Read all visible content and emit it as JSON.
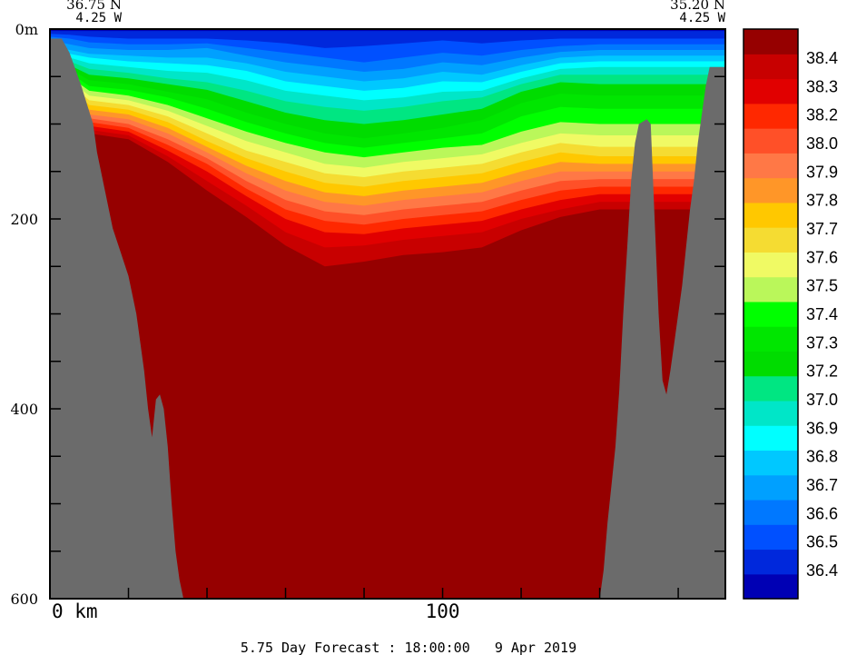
{
  "chart_data": {
    "type": "heatmap",
    "title": "",
    "footer": "5.75 Day Forecast : 18:00:00   9 Apr 2019",
    "endpoints": {
      "left": {
        "lat": "36.75 N",
        "lon": "4.25 W"
      },
      "right": {
        "lat": "35.20 N",
        "lon": "4.25 W"
      }
    },
    "x_axis": {
      "range_km": [
        0,
        172
      ],
      "ticks": [
        0,
        20,
        40,
        60,
        80,
        100,
        120,
        140,
        160
      ],
      "labels": [
        {
          "value": 0,
          "text": "0 km"
        },
        {
          "value": 100,
          "text": "100"
        }
      ]
    },
    "y_axis": {
      "range_m": [
        0,
        600
      ],
      "inverted": true,
      "ticks": [
        0,
        50,
        100,
        150,
        200,
        250,
        300,
        350,
        400,
        450,
        500,
        550,
        600
      ],
      "labels": [
        {
          "value": 0,
          "text": "0m"
        },
        {
          "value": 200,
          "text": "200"
        },
        {
          "value": 400,
          "text": "400"
        },
        {
          "value": 600,
          "text": "600"
        }
      ]
    },
    "colorbar": {
      "colors": [
        "#0000b4",
        "#0028dc",
        "#0050ff",
        "#0078ff",
        "#00a0ff",
        "#00c8ff",
        "#00ffff",
        "#00e6c8",
        "#00e682",
        "#00dc00",
        "#00e600",
        "#00ff00",
        "#baf75a",
        "#f0fa64",
        "#f5dc32",
        "#ffc800",
        "#ff9628",
        "#ff7846",
        "#ff5028",
        "#ff2800",
        "#e10000",
        "#c80000",
        "#960000"
      ],
      "labels": [
        "36.4",
        "36.5",
        "36.6",
        "36.7",
        "36.8",
        "36.9",
        "37.0",
        "37.2",
        "37.3",
        "37.4",
        "37.5",
        "37.6",
        "37.7",
        "37.8",
        "37.9",
        "38.0",
        "38.2",
        "38.3",
        "38.4"
      ]
    },
    "bathymetry_depth_m": [
      [
        0,
        10
      ],
      [
        3,
        10
      ],
      [
        5,
        25
      ],
      [
        8,
        60
      ],
      [
        11,
        100
      ],
      [
        12,
        130
      ],
      [
        14,
        170
      ],
      [
        16,
        210
      ],
      [
        18,
        235
      ],
      [
        20,
        260
      ],
      [
        22,
        300
      ],
      [
        24,
        360
      ],
      [
        25,
        400
      ],
      [
        26,
        430
      ],
      [
        27,
        390
      ],
      [
        28,
        385
      ],
      [
        29,
        400
      ],
      [
        30,
        440
      ],
      [
        31,
        500
      ],
      [
        32,
        550
      ],
      [
        33,
        580
      ],
      [
        34,
        600
      ],
      [
        140,
        600
      ],
      [
        141,
        570
      ],
      [
        142,
        520
      ],
      [
        143,
        480
      ],
      [
        144,
        440
      ],
      [
        145,
        380
      ],
      [
        146,
        300
      ],
      [
        147,
        230
      ],
      [
        148,
        160
      ],
      [
        149,
        120
      ],
      [
        150,
        100
      ],
      [
        152,
        95
      ],
      [
        153,
        100
      ],
      [
        154,
        200
      ],
      [
        155,
        300
      ],
      [
        156,
        370
      ],
      [
        157,
        385
      ],
      [
        158,
        360
      ],
      [
        159,
        330
      ],
      [
        160,
        300
      ],
      [
        161,
        270
      ],
      [
        162,
        230
      ],
      [
        163,
        190
      ],
      [
        164,
        160
      ],
      [
        165,
        120
      ],
      [
        166,
        90
      ],
      [
        167,
        60
      ],
      [
        168,
        40
      ]
    ],
    "isolines_depth_m": {
      "x": [
        0,
        5,
        10,
        20,
        30,
        40,
        50,
        60,
        70,
        80,
        90,
        100,
        110,
        120,
        130,
        140,
        150,
        160,
        170,
        172
      ],
      "levels": [
        [
          2,
          2,
          2,
          2,
          2,
          2,
          2,
          2,
          2,
          2,
          2,
          2,
          2,
          2,
          2,
          2,
          2,
          2,
          2,
          2
        ],
        [
          5,
          6,
          8,
          10,
          10,
          10,
          12,
          15,
          20,
          18,
          15,
          12,
          15,
          12,
          10,
          10,
          10,
          10,
          10,
          10
        ],
        [
          8,
          10,
          14,
          16,
          16,
          15,
          20,
          25,
          30,
          35,
          30,
          25,
          28,
          22,
          18,
          16,
          16,
          16,
          16,
          16
        ],
        [
          12,
          16,
          20,
          22,
          22,
          20,
          28,
          35,
          40,
          45,
          42,
          35,
          38,
          30,
          24,
          22,
          22,
          22,
          22,
          22
        ],
        [
          16,
          22,
          26,
          28,
          30,
          30,
          36,
          45,
          50,
          55,
          52,
          45,
          48,
          38,
          30,
          28,
          28,
          28,
          28,
          28
        ],
        [
          20,
          26,
          30,
          34,
          36,
          38,
          44,
          55,
          60,
          65,
          62,
          55,
          56,
          45,
          36,
          34,
          34,
          34,
          34,
          34
        ],
        [
          24,
          30,
          36,
          40,
          44,
          46,
          54,
          65,
          70,
          75,
          72,
          66,
          65,
          52,
          42,
          40,
          40,
          40,
          40,
          40
        ],
        [
          28,
          34,
          42,
          46,
          52,
          56,
          65,
          76,
          82,
          86,
          82,
          76,
          72,
          58,
          48,
          48,
          48,
          48,
          48,
          48
        ],
        [
          32,
          38,
          48,
          52,
          58,
          64,
          76,
          88,
          96,
          100,
          96,
          90,
          84,
          66,
          56,
          58,
          58,
          58,
          58,
          58
        ],
        [
          36,
          42,
          54,
          58,
          66,
          74,
          88,
          100,
          110,
          115,
          110,
          104,
          96,
          78,
          68,
          70,
          70,
          70,
          70,
          70
        ],
        [
          40,
          46,
          60,
          64,
          72,
          84,
          98,
          110,
          120,
          125,
          120,
          115,
          110,
          92,
          82,
          84,
          84,
          84,
          84,
          84
        ],
        [
          44,
          50,
          65,
          70,
          80,
          94,
          108,
          120,
          130,
          135,
          130,
          125,
          122,
          108,
          98,
          100,
          100,
          100,
          100,
          100
        ],
        [
          48,
          54,
          70,
          75,
          86,
          102,
          118,
          130,
          142,
          146,
          140,
          136,
          132,
          120,
          110,
          112,
          112,
          112,
          112,
          112
        ],
        [
          52,
          58,
          75,
          80,
          92,
          110,
          128,
          140,
          152,
          156,
          150,
          146,
          142,
          130,
          120,
          124,
          124,
          124,
          124,
          124
        ],
        [
          56,
          62,
          80,
          85,
          98,
          118,
          136,
          150,
          162,
          166,
          160,
          156,
          152,
          140,
          130,
          134,
          134,
          134,
          134,
          134
        ],
        [
          60,
          66,
          85,
          90,
          104,
          124,
          144,
          160,
          172,
          176,
          170,
          166,
          162,
          150,
          140,
          142,
          142,
          142,
          142,
          142
        ],
        [
          64,
          70,
          90,
          95,
          110,
          130,
          152,
          170,
          182,
          186,
          180,
          176,
          172,
          160,
          150,
          150,
          150,
          150,
          150,
          150
        ],
        [
          68,
          74,
          94,
          100,
          116,
          136,
          160,
          180,
          192,
          196,
          190,
          186,
          182,
          170,
          160,
          158,
          158,
          158,
          158,
          158
        ],
        [
          72,
          78,
          98,
          104,
          122,
          142,
          168,
          190,
          202,
          206,
          200,
          196,
          192,
          180,
          170,
          166,
          166,
          166,
          166,
          166
        ],
        [
          76,
          82,
          102,
          108,
          128,
          150,
          176,
          200,
          214,
          216,
          210,
          206,
          202,
          190,
          180,
          174,
          174,
          174,
          174,
          174
        ],
        [
          80,
          86,
          106,
          112,
          134,
          160,
          186,
          214,
          230,
          228,
          222,
          218,
          214,
          200,
          190,
          182,
          182,
          182,
          182,
          182
        ],
        [
          84,
          90,
          110,
          116,
          140,
          170,
          198,
          228,
          250,
          245,
          238,
          235,
          230,
          212,
          198,
          190,
          190,
          190,
          190,
          190
        ]
      ]
    }
  }
}
